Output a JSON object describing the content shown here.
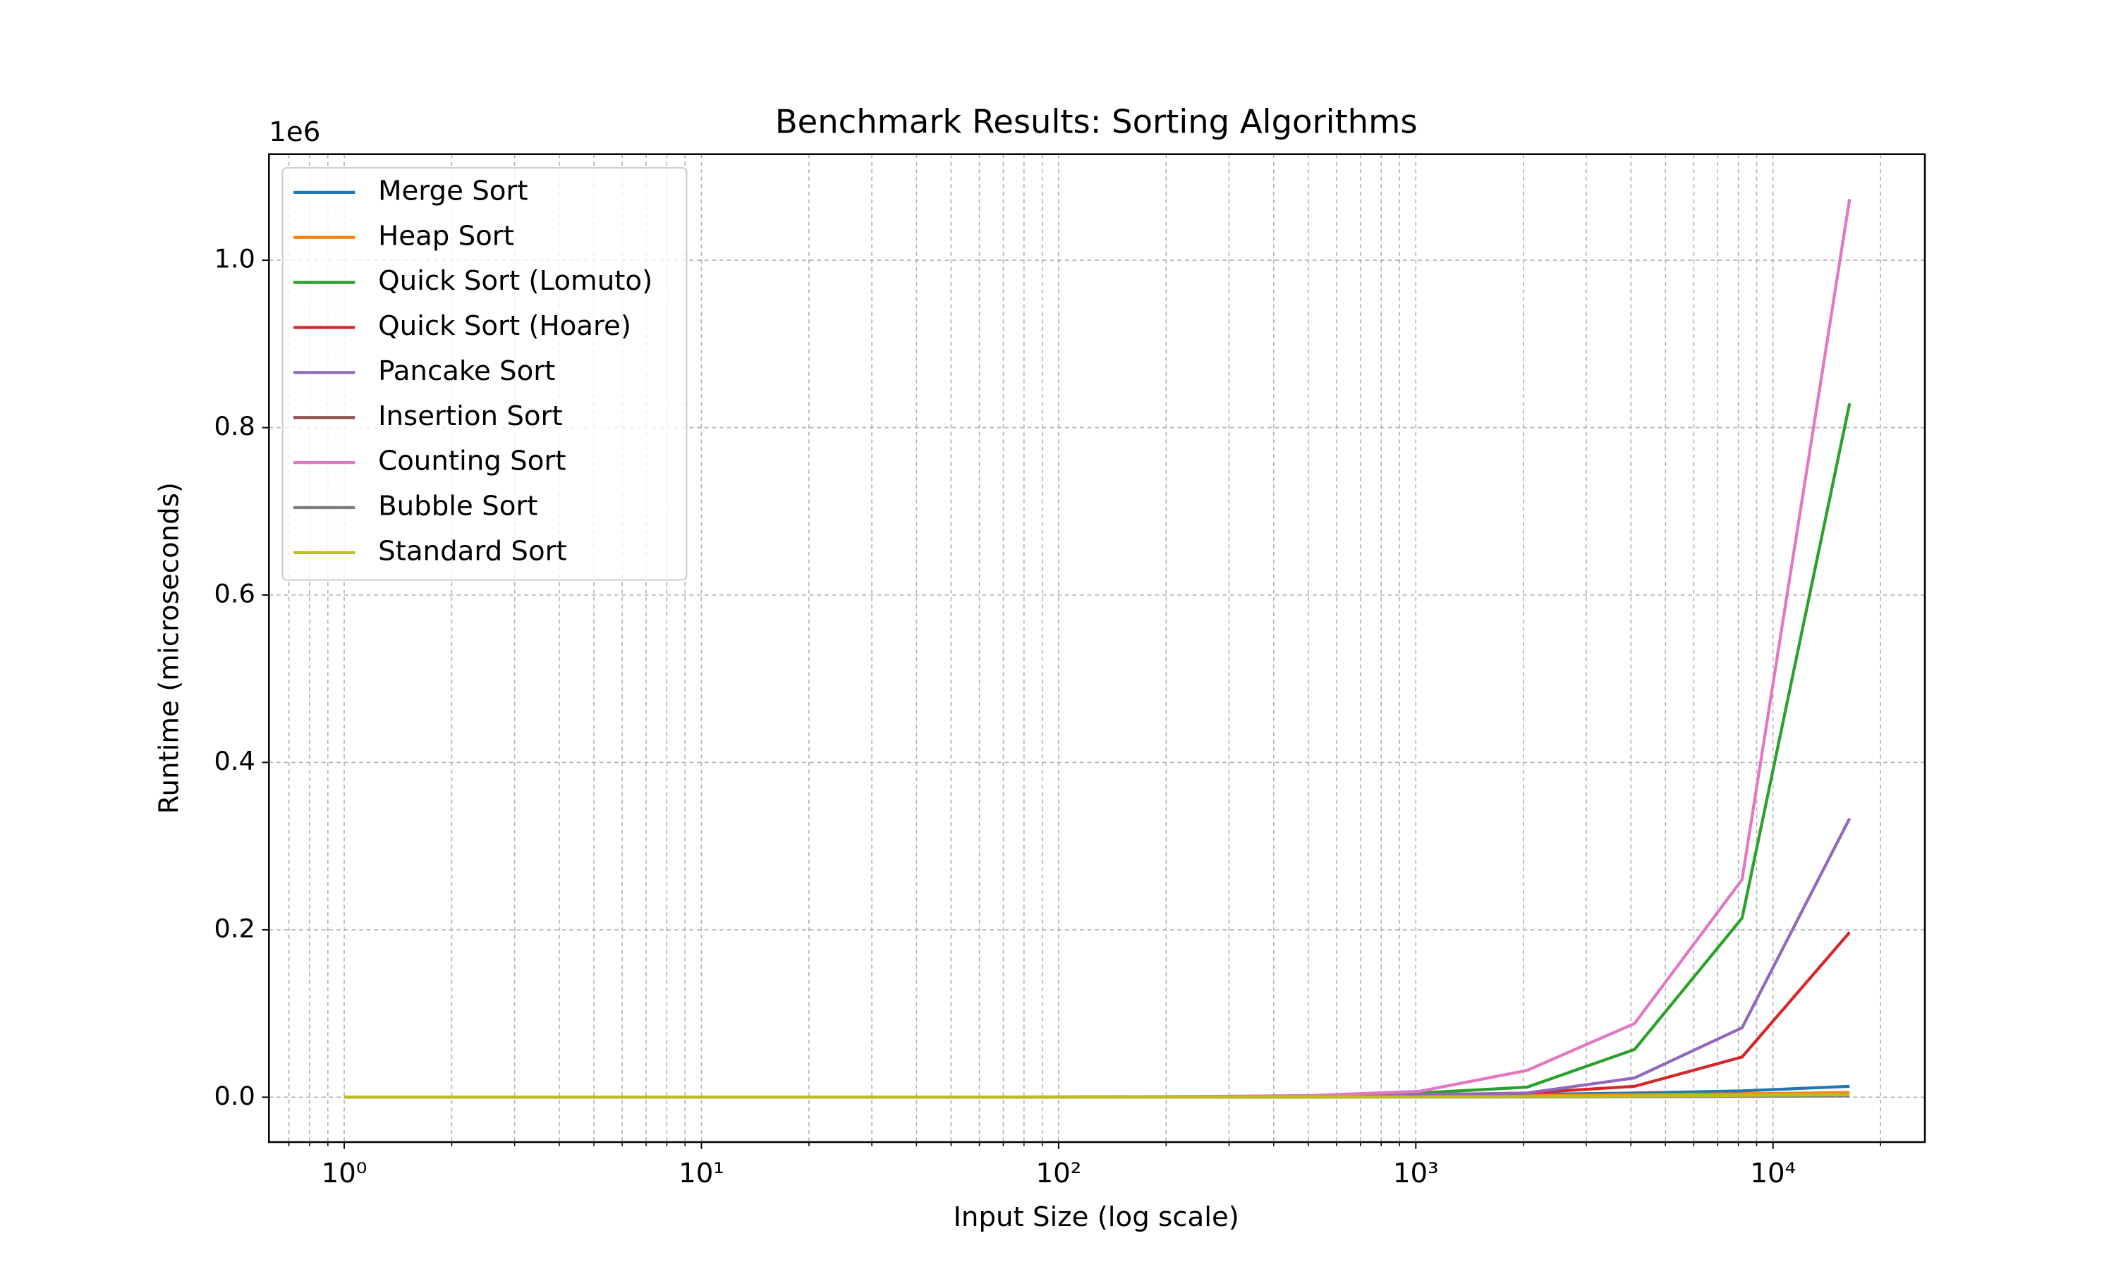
{
  "chart_data": {
    "type": "line",
    "title": "Benchmark Results: Sorting Algorithms",
    "x_label": "Input Size (log scale)",
    "y_label": "Runtime (microseconds)",
    "y_offset_label": "1e6",
    "x": [
      1,
      2,
      4,
      8,
      16,
      32,
      64,
      128,
      256,
      512,
      1024,
      2048,
      4096,
      8192,
      16384
    ],
    "xscale": "log",
    "xlim": [
      0.6155,
      26616
    ],
    "xticks": [
      {
        "value": 1,
        "label": "10⁰"
      },
      {
        "value": 10,
        "label": "10¹"
      },
      {
        "value": 100,
        "label": "10²"
      },
      {
        "value": 1000,
        "label": "10³"
      },
      {
        "value": 10000,
        "label": "10⁴"
      }
    ],
    "xminorticks": [
      0.7,
      0.8,
      0.9,
      2,
      3,
      4,
      5,
      6,
      7,
      8,
      9,
      20,
      30,
      40,
      50,
      60,
      70,
      80,
      90,
      200,
      300,
      400,
      500,
      600,
      700,
      800,
      900,
      2000,
      3000,
      4000,
      5000,
      6000,
      7000,
      8000,
      9000,
      20000
    ],
    "ylim": [
      -53650,
      1126700
    ],
    "yticks": [
      {
        "value": 0,
        "label": "0.0"
      },
      {
        "value": 200000,
        "label": "0.2"
      },
      {
        "value": 400000,
        "label": "0.4"
      },
      {
        "value": 600000,
        "label": "0.6"
      },
      {
        "value": 800000,
        "label": "0.8"
      },
      {
        "value": 1000000,
        "label": "1.0"
      }
    ],
    "grid": true,
    "legend": "upper left",
    "series": [
      {
        "name": "Merge Sort",
        "color": "#1f77b4",
        "values": [
          1,
          2,
          5,
          11,
          24,
          52,
          110,
          240,
          520,
          1100,
          2000,
          3200,
          5000,
          7500,
          13000
        ]
      },
      {
        "name": "Heap Sort",
        "color": "#ff7f0e",
        "values": [
          1,
          2,
          4,
          9,
          20,
          45,
          100,
          210,
          450,
          900,
          1400,
          2000,
          3000,
          4000,
          5500
        ]
      },
      {
        "name": "Quick Sort (Lomuto)",
        "color": "#2ca02c",
        "values": [
          1,
          1,
          2,
          4,
          10,
          25,
          70,
          200,
          600,
          1500,
          5000,
          12000,
          57000,
          214000,
          829000
        ]
      },
      {
        "name": "Quick Sort (Hoare)",
        "color": "#d62728",
        "values": [
          1,
          1,
          2,
          4,
          8,
          18,
          45,
          110,
          300,
          800,
          2000,
          5000,
          13000,
          48000,
          197000
        ]
      },
      {
        "name": "Pancake Sort",
        "color": "#9467bd",
        "values": [
          1,
          1,
          2,
          4,
          10,
          30,
          90,
          250,
          700,
          1600,
          3000,
          5000,
          23000,
          83000,
          333000
        ]
      },
      {
        "name": "Insertion Sort",
        "color": "#8c564b",
        "values": [
          1,
          1,
          2,
          3,
          6,
          12,
          25,
          50,
          100,
          200,
          400,
          800,
          1200,
          1800,
          2500
        ]
      },
      {
        "name": "Counting Sort",
        "color": "#e377c2",
        "values": [
          1,
          2,
          3,
          6,
          15,
          40,
          120,
          350,
          900,
          2000,
          7000,
          32000,
          88000,
          260000,
          1073000
        ]
      },
      {
        "name": "Bubble Sort",
        "color": "#7f7f7f",
        "values": [
          1,
          1,
          1,
          2,
          3,
          5,
          10,
          20,
          40,
          80,
          160,
          320,
          640,
          1000,
          1500
        ]
      },
      {
        "name": "Standard Sort",
        "color": "#bcbd22",
        "values": [
          1,
          1,
          2,
          3,
          5,
          10,
          20,
          45,
          100,
          200,
          400,
          800,
          1500,
          2200,
          3000
        ]
      }
    ]
  }
}
